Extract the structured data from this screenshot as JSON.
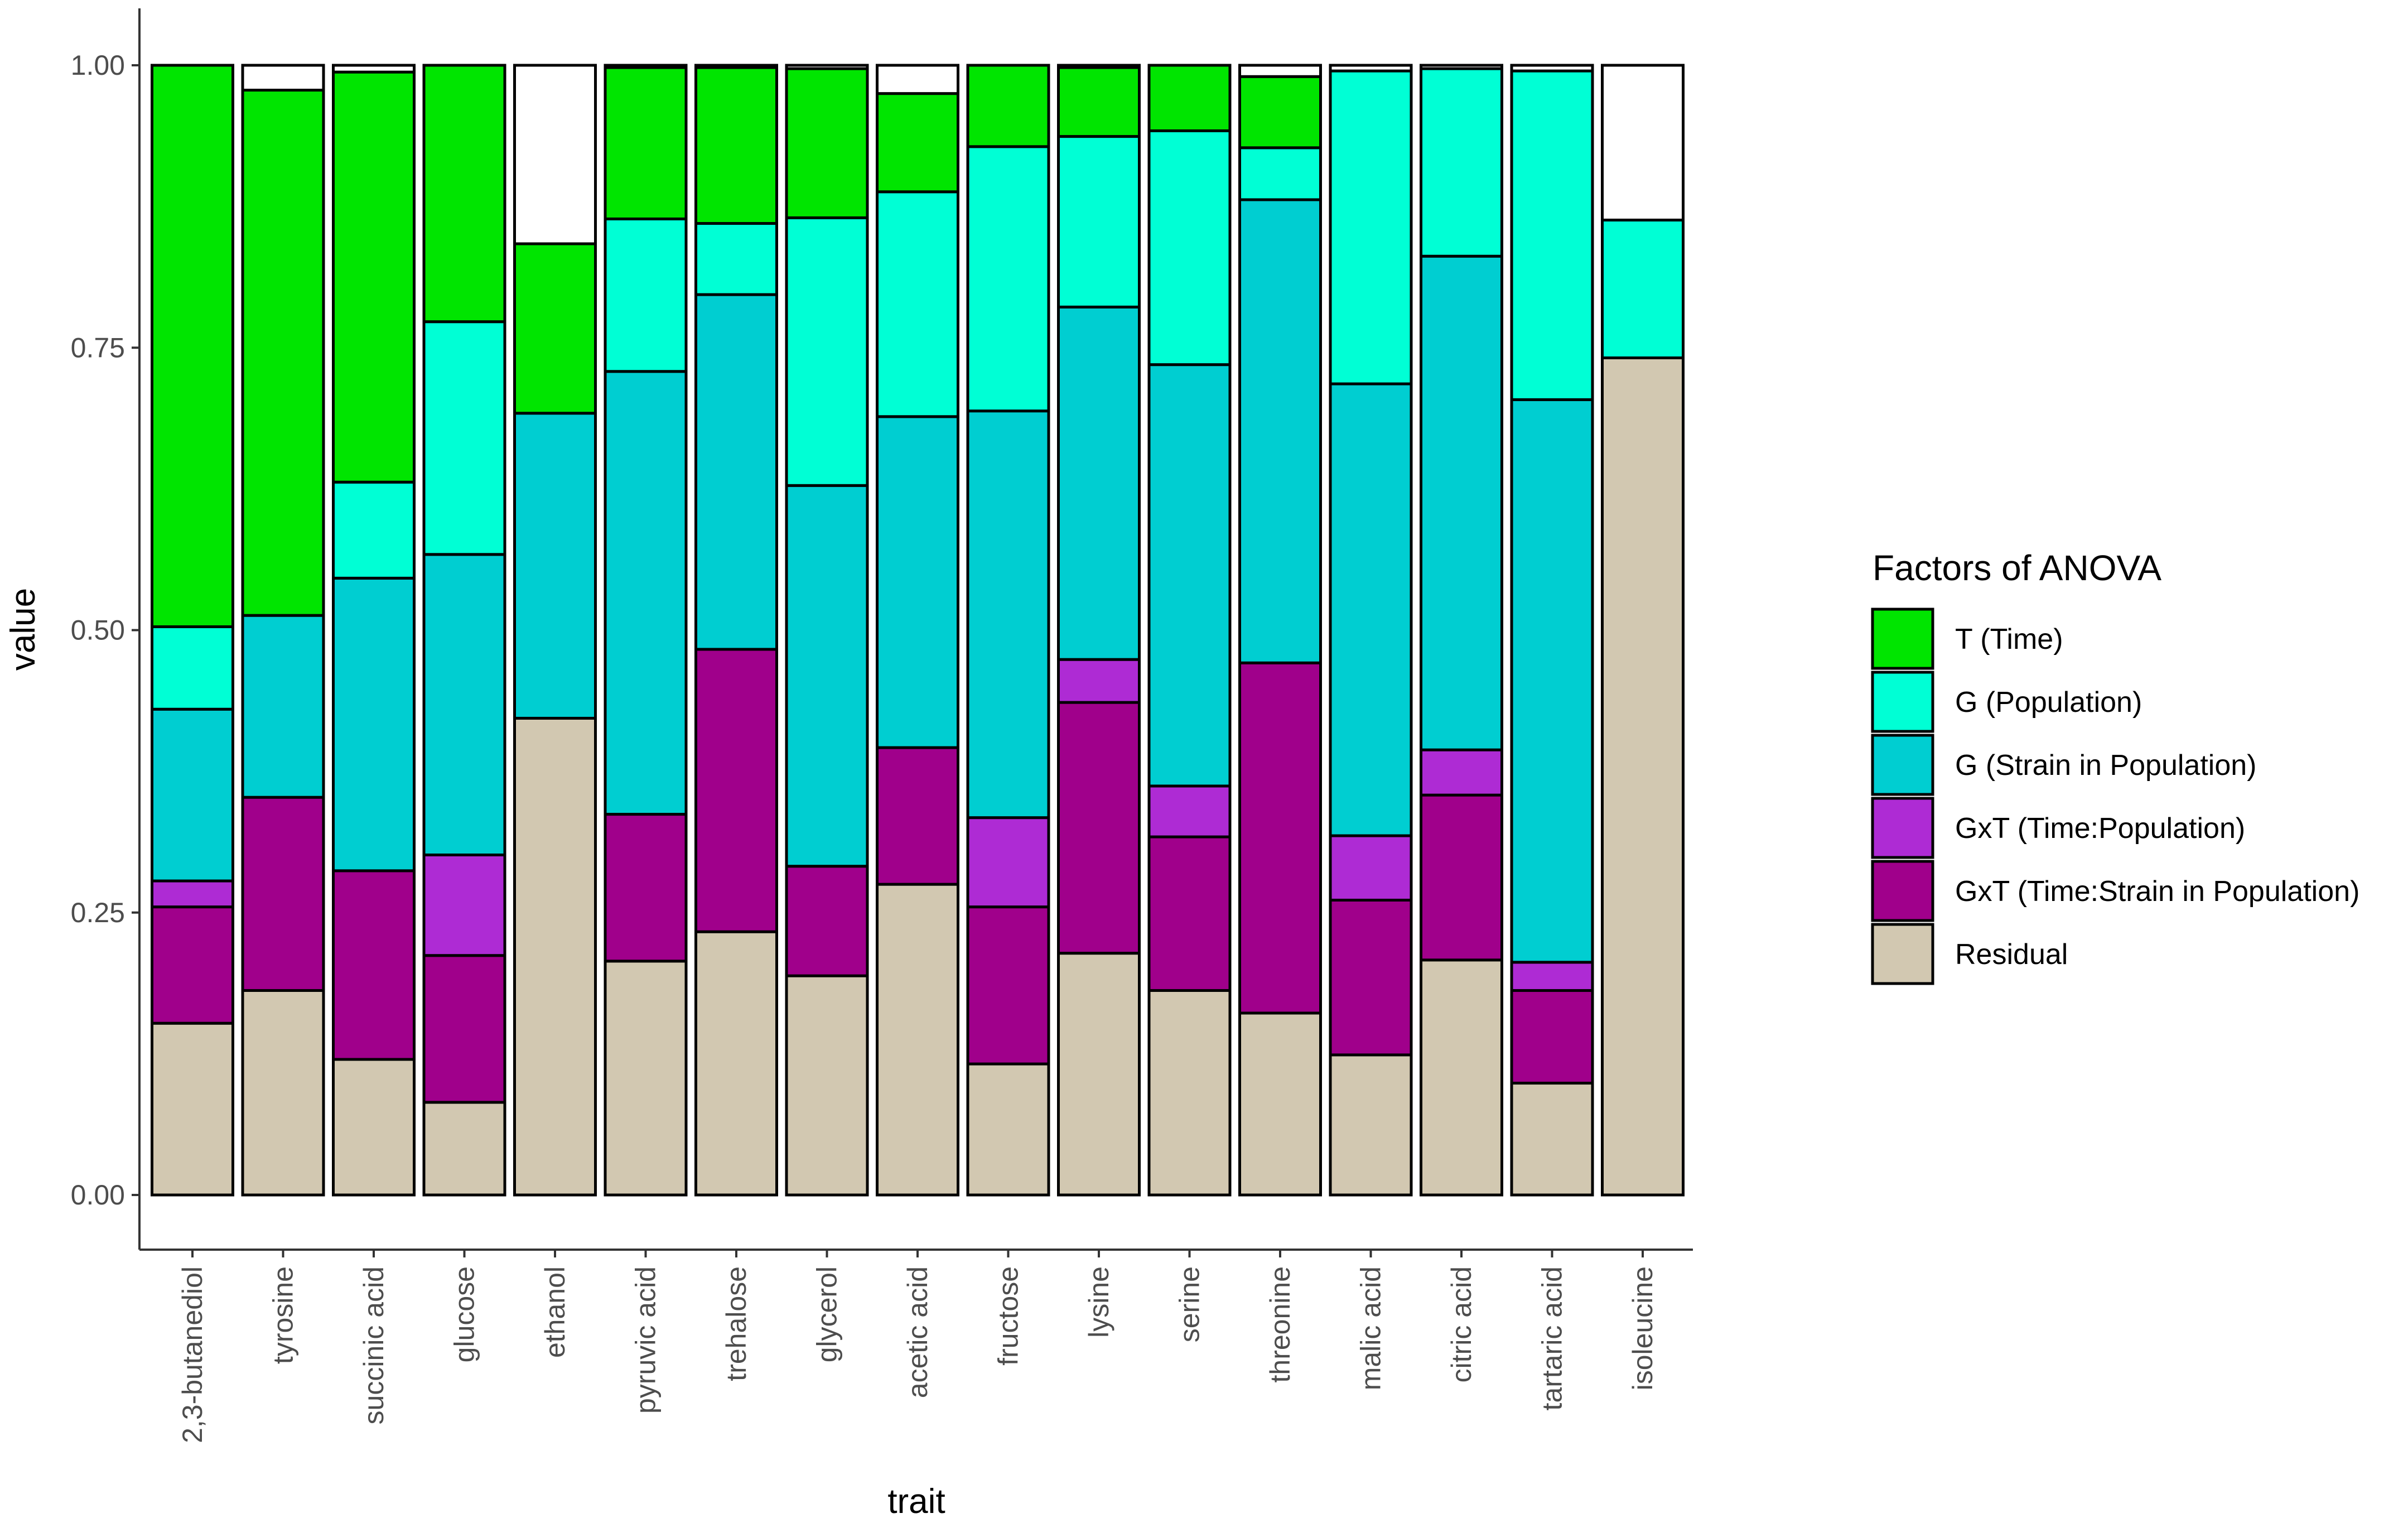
{
  "chart_data": {
    "type": "bar",
    "stacked": true,
    "xlabel": "trait",
    "ylabel": "value",
    "ylim": [
      0,
      1
    ],
    "yticks": [
      "0.00",
      "0.25",
      "0.50",
      "0.75",
      "1.00"
    ],
    "legend_title": "Factors of ANOVA",
    "legend_position": "right",
    "categories": [
      "2,3-butanediol",
      "tyrosine",
      "succinic acid",
      "glucose",
      "ethanol",
      "pyruvic acid",
      "trehalose",
      "glycerol",
      "acetic acid",
      "fructose",
      "lysine",
      "serine",
      "threonine",
      "malic acid",
      "citric acid",
      "tartaric acid",
      "isoleucine"
    ],
    "series": [
      {
        "name": "Residual",
        "color": "#D2C8B1",
        "values": [
          0.152,
          0.181,
          0.12,
          0.082,
          0.422,
          0.207,
          0.233,
          0.194,
          0.275,
          0.116,
          0.214,
          0.181,
          0.161,
          0.124,
          0.208,
          0.099,
          0.741
        ]
      },
      {
        "name": "GxT (Time:Strain in Population)",
        "color": "#A0008B",
        "values": [
          0.103,
          0.171,
          0.167,
          0.13,
          0.0,
          0.13,
          0.25,
          0.097,
          0.121,
          0.139,
          0.222,
          0.136,
          0.31,
          0.137,
          0.146,
          0.082,
          0.0
        ]
      },
      {
        "name": "GxT (Time:Population)",
        "color": "#AE2BD4",
        "values": [
          0.023,
          0.0,
          0.0,
          0.089,
          0.0,
          0.0,
          0.0,
          0.0,
          0.0,
          0.079,
          0.038,
          0.045,
          0.0,
          0.057,
          0.04,
          0.025,
          0.0
        ]
      },
      {
        "name": "G (Strain in Population)",
        "color": "#00CED1",
        "values": [
          0.152,
          0.161,
          0.259,
          0.266,
          0.27,
          0.392,
          0.314,
          0.337,
          0.293,
          0.36,
          0.312,
          0.373,
          0.41,
          0.4,
          0.437,
          0.498,
          0.0
        ]
      },
      {
        "name": "G (Population)",
        "color": "#00FFD5",
        "values": [
          0.073,
          0.0,
          0.085,
          0.206,
          0.0,
          0.135,
          0.063,
          0.237,
          0.199,
          0.234,
          0.151,
          0.207,
          0.046,
          0.277,
          0.166,
          0.291,
          0.122
        ]
      },
      {
        "name": "T (Time)",
        "color": "#00E500",
        "values": [
          0.497,
          0.465,
          0.363,
          0.227,
          0.15,
          0.134,
          0.138,
          0.132,
          0.087,
          0.072,
          0.061,
          0.058,
          0.063,
          0.0,
          0.0,
          0.0,
          0.0
        ]
      }
    ],
    "legend_order": [
      "T (Time)",
      "G (Population)",
      "G (Strain in Population)",
      "GxT (Time:Population)",
      "GxT (Time:Strain in Population)",
      "Residual"
    ]
  }
}
